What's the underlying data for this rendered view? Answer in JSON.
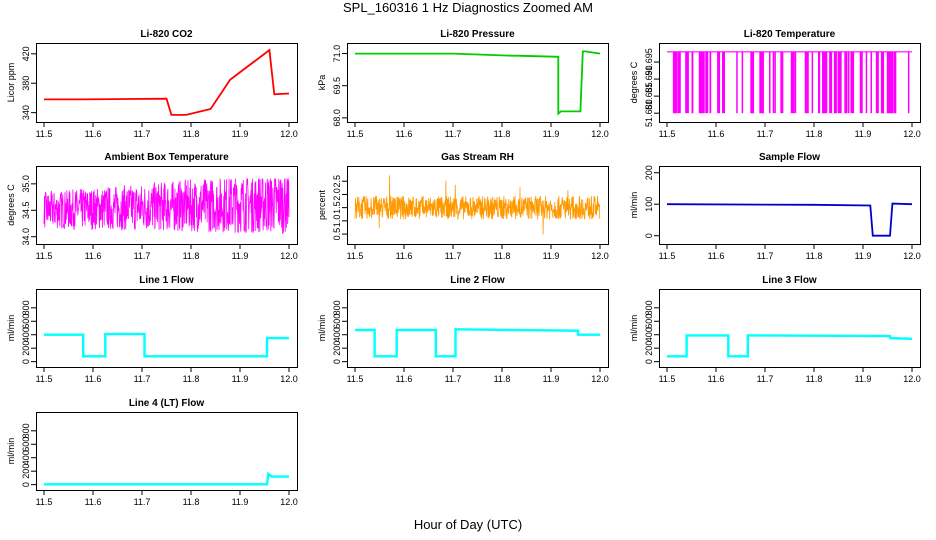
{
  "title": "SPL_160316  1 Hz Diagnostics Zoomed AM",
  "xlabel": "Hour of Day (UTC)",
  "chart_data": [
    {
      "type": "line",
      "title": "Li-820 CO2",
      "ylabel": "Licor ppm",
      "color": "#ff0000",
      "xlim": [
        11.5,
        12.0
      ],
      "ylim": [
        330,
        432
      ],
      "xticks": [
        11.5,
        11.6,
        11.7,
        11.8,
        11.9,
        12.0
      ],
      "yticks": [
        340,
        380,
        420
      ],
      "series": [
        {
          "x": [
            11.5,
            11.58,
            11.58,
            11.75,
            11.75,
            11.76,
            11.76,
            11.79,
            11.79,
            11.84,
            11.84,
            11.88,
            11.88,
            11.96,
            11.96,
            11.97,
            11.97,
            12.0
          ],
          "y": [
            358,
            358,
            358,
            359,
            359,
            337,
            337,
            337,
            337,
            345,
            345,
            385,
            385,
            425,
            425,
            365,
            365,
            366
          ]
        }
      ]
    },
    {
      "type": "line",
      "title": "Li-820 Pressure",
      "ylabel": "kPa",
      "color": "#00cc00",
      "xlim": [
        11.5,
        12.0
      ],
      "ylim": [
        67.9,
        71.4
      ],
      "xticks": [
        11.5,
        11.6,
        11.7,
        11.8,
        11.9,
        12.0
      ],
      "yticks": [
        68.0,
        69.5,
        71.0
      ],
      "ytick_labels": [
        "68.0",
        "69.5",
        "71.0"
      ],
      "series": [
        {
          "x": [
            11.5,
            11.7,
            11.82,
            11.83,
            11.915,
            11.915,
            11.92,
            11.96,
            11.965,
            11.97,
            12.0
          ],
          "y": [
            71.0,
            71.0,
            70.9,
            70.9,
            70.85,
            68.2,
            68.3,
            68.3,
            71.1,
            71.1,
            71.0
          ]
        }
      ]
    },
    {
      "type": "line",
      "title": "Li-820 Temperature",
      "ylabel": "degrees C",
      "color": "#ff00ff",
      "xlim": [
        11.5,
        12.0
      ],
      "ylim": [
        51.678,
        51.7
      ],
      "xticks": [
        11.5,
        11.6,
        11.7,
        11.8,
        11.9,
        12.0
      ],
      "yticks": [
        51.68,
        51.685,
        51.69,
        51.695
      ],
      "ytick_labels": [
        "51.680",
        "51.685",
        "51.690",
        "51.695"
      ],
      "series": [
        {
          "x": [
            11.5,
            12.0
          ],
          "y": [
            51.698,
            51.698
          ]
        }
      ],
      "note": "flickers between 51.698 and 51.680"
    },
    {
      "type": "line",
      "title": "Ambient Box Temperature",
      "ylabel": "degrees C",
      "color": "#ff00ff",
      "xlim": [
        11.5,
        12.0
      ],
      "ylim": [
        33.9,
        35.3
      ],
      "xticks": [
        11.5,
        11.6,
        11.7,
        11.8,
        11.9,
        12.0
      ],
      "yticks": [
        34.0,
        34.5,
        35.0
      ],
      "ytick_labels": [
        "34.0",
        "34.5",
        "35.0"
      ],
      "series": [
        {
          "x": [
            11.5,
            12.0
          ],
          "y": [
            34.4,
            34.7
          ]
        }
      ],
      "note": "noisy band roughly 34.0 to 35.1"
    },
    {
      "type": "line",
      "title": "Gas Stream RH",
      "ylabel": "percent",
      "color": "#ff9900",
      "xlim": [
        11.5,
        12.0
      ],
      "ylim": [
        0.2,
        3.0
      ],
      "xticks": [
        11.5,
        11.6,
        11.7,
        11.8,
        11.9,
        12.0
      ],
      "yticks": [
        0.5,
        1.0,
        1.5,
        2.0,
        2.5
      ],
      "ytick_labels": [
        "0.5",
        "1.0",
        "1.5",
        "2.0",
        "2.5"
      ],
      "series": [
        {
          "x": [
            11.5,
            12.0
          ],
          "y": [
            1.5,
            1.5
          ]
        }
      ],
      "note": "noisy band roughly 1.0 to 2.0 with spikes"
    },
    {
      "type": "line",
      "title": "Sample Flow",
      "ylabel": "ml/min",
      "color": "#0000cc",
      "xlim": [
        11.5,
        12.0
      ],
      "ylim": [
        -20,
        215
      ],
      "xticks": [
        11.5,
        11.6,
        11.7,
        11.8,
        11.9,
        12.0
      ],
      "yticks": [
        0,
        100,
        200
      ],
      "series": [
        {
          "x": [
            11.5,
            11.8,
            11.915,
            11.92,
            11.955,
            11.96,
            12.0
          ],
          "y": [
            100,
            98,
            96,
            0,
            0,
            102,
            100
          ]
        }
      ]
    },
    {
      "type": "line",
      "title": "Line 1 Flow",
      "ylabel": "ml/min",
      "color": "#00ffff",
      "xlim": [
        11.5,
        12.0
      ],
      "ylim": [
        -50,
        1050
      ],
      "xticks": [
        11.5,
        11.6,
        11.7,
        11.8,
        11.9,
        12.0
      ],
      "yticks": [
        0,
        200,
        400,
        600,
        800
      ],
      "series": [
        {
          "x": [
            11.5,
            11.58,
            11.58,
            11.625,
            11.625,
            11.705,
            11.705,
            11.955,
            11.955,
            12.0
          ],
          "y": [
            400,
            400,
            80,
            80,
            410,
            410,
            80,
            80,
            350,
            350
          ]
        }
      ]
    },
    {
      "type": "line",
      "title": "Line 2 Flow",
      "ylabel": "ml/min",
      "color": "#00ffff",
      "xlim": [
        11.5,
        12.0
      ],
      "ylim": [
        -50,
        1050
      ],
      "xticks": [
        11.5,
        11.6,
        11.7,
        11.8,
        11.9,
        12.0
      ],
      "yticks": [
        0,
        200,
        400,
        600,
        800
      ],
      "series": [
        {
          "x": [
            11.5,
            11.54,
            11.54,
            11.585,
            11.585,
            11.665,
            11.665,
            11.705,
            11.705,
            11.955,
            11.955,
            12.0
          ],
          "y": [
            470,
            470,
            80,
            80,
            470,
            470,
            80,
            80,
            480,
            460,
            400,
            400
          ]
        }
      ]
    },
    {
      "type": "line",
      "title": "Line 3 Flow",
      "ylabel": "ml/min",
      "color": "#00ffff",
      "xlim": [
        11.5,
        12.0
      ],
      "ylim": [
        -50,
        1050
      ],
      "xticks": [
        11.5,
        11.6,
        11.7,
        11.8,
        11.9,
        12.0
      ],
      "yticks": [
        0,
        200,
        400,
        600,
        800
      ],
      "series": [
        {
          "x": [
            11.5,
            11.54,
            11.54,
            11.625,
            11.625,
            11.665,
            11.665,
            11.955,
            11.955,
            12.0
          ],
          "y": [
            80,
            80,
            390,
            390,
            80,
            80,
            390,
            380,
            350,
            340
          ]
        }
      ]
    },
    {
      "type": "line",
      "title": "Line 4 (LT) Flow",
      "ylabel": "ml/min",
      "color": "#00ffff",
      "xlim": [
        11.5,
        12.0
      ],
      "ylim": [
        -50,
        1050
      ],
      "xticks": [
        11.5,
        11.6,
        11.7,
        11.8,
        11.9,
        12.0
      ],
      "yticks": [
        0,
        200,
        400,
        600,
        800
      ],
      "series": [
        {
          "x": [
            11.5,
            11.955,
            11.958,
            11.965,
            12.0
          ],
          "y": [
            5,
            5,
            160,
            120,
            120
          ]
        }
      ]
    }
  ]
}
